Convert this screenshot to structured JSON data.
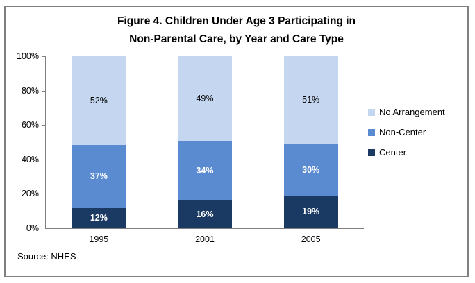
{
  "title": {
    "line1": "Figure 4. Children Under Age 3 Participating in",
    "line2": "Non-Parental Care, by Year and Care Type"
  },
  "source_note": "Source: NHES",
  "colors": {
    "frame_border": "#808080",
    "axis": "#808080",
    "text": "#000000"
  },
  "chart_data": {
    "type": "bar",
    "subtype": "stacked",
    "title": "Figure 4. Children Under Age 3 Participating in Non-Parental Care, by Year and Care Type",
    "categories": [
      "1995",
      "2001",
      "2005"
    ],
    "series": [
      {
        "name": "Center",
        "values": [
          12,
          16,
          19
        ],
        "color": "#1B3A63",
        "label_color": "#FFFFFF",
        "label_bold": true
      },
      {
        "name": "Non-Center",
        "values": [
          37,
          34,
          30
        ],
        "color": "#5A8BD0",
        "label_color": "#FFFFFF",
        "label_bold": true
      },
      {
        "name": "No Arrangement",
        "values": [
          52,
          49,
          51
        ],
        "color": "#C5D7F0",
        "label_color": "#000000",
        "label_bold": false
      }
    ],
    "value_suffix": "%",
    "y_ticks": [
      0,
      20,
      40,
      60,
      80,
      100
    ],
    "ylim": [
      0,
      100
    ],
    "grid": false,
    "legend_position": "right",
    "legend_order": [
      "No Arrangement",
      "Non-Center",
      "Center"
    ],
    "xlabel": "",
    "ylabel": ""
  }
}
